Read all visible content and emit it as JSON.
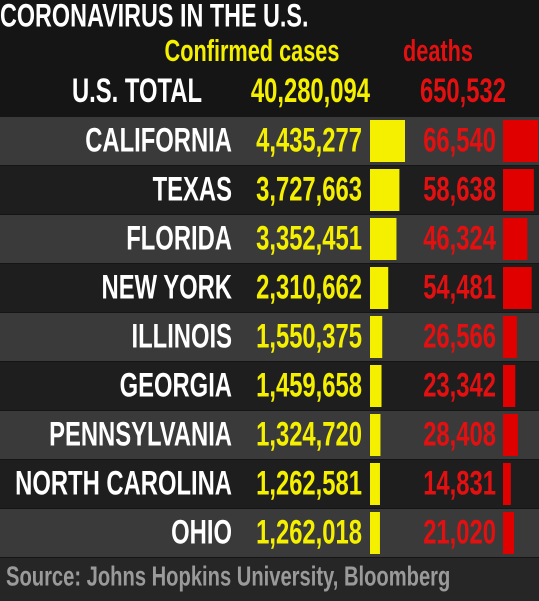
{
  "title": "CORONAVIRUS IN THE U.S.",
  "headers": {
    "cases": "Confirmed cases",
    "deaths": "deaths"
  },
  "total": {
    "label": "U.S. TOTAL",
    "cases": {
      "value": 40280094,
      "label": "40,280,094"
    },
    "deaths": {
      "value": 650532,
      "label": "650,532"
    }
  },
  "rows": [
    {
      "state": "CALIFORNIA",
      "cases": {
        "value": 4435277,
        "label": "4,435,277"
      },
      "deaths": {
        "value": 66540,
        "label": "66,540"
      }
    },
    {
      "state": "TEXAS",
      "cases": {
        "value": 3727663,
        "label": "3,727,663"
      },
      "deaths": {
        "value": 58638,
        "label": "58,638"
      }
    },
    {
      "state": "FLORIDA",
      "cases": {
        "value": 3352451,
        "label": "3,352,451"
      },
      "deaths": {
        "value": 46324,
        "label": "46,324"
      }
    },
    {
      "state": "NEW YORK",
      "cases": {
        "value": 2310662,
        "label": "2,310,662"
      },
      "deaths": {
        "value": 54481,
        "label": "54,481"
      }
    },
    {
      "state": "ILLINOIS",
      "cases": {
        "value": 1550375,
        "label": "1,550,375"
      },
      "deaths": {
        "value": 26566,
        "label": "26,566"
      }
    },
    {
      "state": "GEORGIA",
      "cases": {
        "value": 1459658,
        "label": "1,459,658"
      },
      "deaths": {
        "value": 23342,
        "label": "23,342"
      }
    },
    {
      "state": "PENNSYLVANIA",
      "cases": {
        "value": 1324720,
        "label": "1,324,720"
      },
      "deaths": {
        "value": 28408,
        "label": "28,408"
      }
    },
    {
      "state": "NORTH CAROLINA",
      "cases": {
        "value": 1262581,
        "label": "1,262,581"
      },
      "deaths": {
        "value": 14831,
        "label": "14,831"
      }
    },
    {
      "state": "OHIO",
      "cases": {
        "value": 1262018,
        "label": "1,262,018"
      },
      "deaths": {
        "value": 21020,
        "label": "21,020"
      }
    }
  ],
  "source": "Source: Johns Hopkins University, Bloomberg"
}
